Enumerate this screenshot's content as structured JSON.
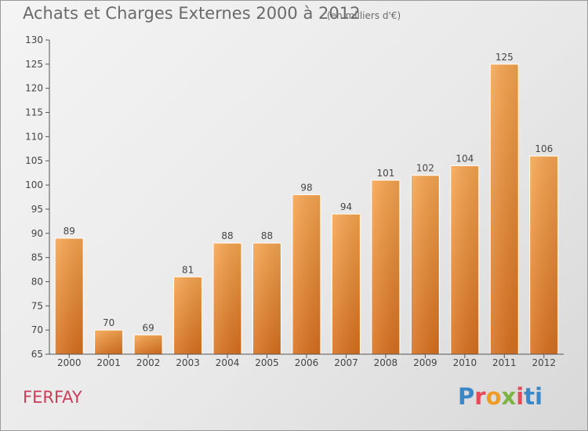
{
  "header": {
    "title": "Achats et Charges Externes 2000 à 2012",
    "units": "(en milliers d'€)"
  },
  "footer": {
    "commune": "FERFAY",
    "logo": "Proxiti"
  },
  "colors": {
    "bar_light": "#f6a550",
    "bar_dark": "#d7701e",
    "axis": "#555555",
    "commune": "#cc3d5a"
  },
  "chart_data": {
    "type": "bar",
    "title": "Achats et Charges Externes 2000 à 2012",
    "subtitle": "(en milliers d'€)",
    "xlabel": "",
    "ylabel": "",
    "categories": [
      "2000",
      "2001",
      "2002",
      "2003",
      "2004",
      "2005",
      "2006",
      "2007",
      "2008",
      "2009",
      "2010",
      "2011",
      "2012"
    ],
    "values": [
      89,
      70,
      69,
      81,
      88,
      88,
      98,
      94,
      101,
      102,
      104,
      125,
      106
    ],
    "ylim": [
      65,
      130
    ],
    "yticks": [
      65,
      70,
      75,
      80,
      85,
      90,
      95,
      100,
      105,
      110,
      115,
      120,
      125,
      130
    ],
    "grid": false,
    "legend": "none",
    "data_labels": true
  }
}
